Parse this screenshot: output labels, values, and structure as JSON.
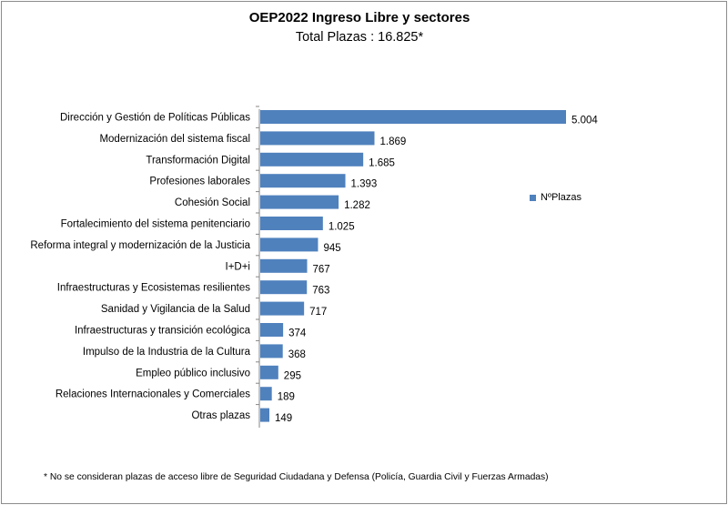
{
  "chart_data": {
    "type": "bar",
    "orientation": "horizontal",
    "title": "OEP2022 Ingreso Libre y sectores",
    "subtitle": "Total Plazas : 16.825*",
    "categories": [
      "Dirección y Gestión de Políticas Públicas",
      "Modernización del sistema fiscal",
      "Transformación Digital",
      "Profesiones laborales",
      "Cohesión Social",
      "Fortalecimiento del sistema penitenciario",
      "Reforma integral y modernización de la Justicia",
      "I+D+i",
      "Infraestructuras y Ecosistemas resilientes",
      "Sanidad y Vigilancia de la Salud",
      "Infraestructuras y transición ecológica",
      "Impulso de la Industria de la Cultura",
      "Empleo público inclusivo",
      "Relaciones Internacionales y Comerciales",
      "Otras plazas"
    ],
    "series": [
      {
        "name": "NºPlazas",
        "values": [
          5004,
          1869,
          1685,
          1393,
          1282,
          1025,
          945,
          767,
          763,
          717,
          374,
          368,
          295,
          189,
          149
        ],
        "value_labels": [
          "5.004",
          "1.869",
          "1.685",
          "1.393",
          "1.282",
          "1.025",
          "945",
          "767",
          "763",
          "717",
          "374",
          "368",
          "295",
          "189",
          "149"
        ]
      }
    ],
    "bar_color": "#4f81bd",
    "legend_position": "right",
    "grid": false,
    "xlim": [
      0,
      5004
    ]
  },
  "footnote": "* No se consideran plazas de acceso libre de Seguridad Ciudadana y Defensa (Policía, Guardia Civil y Fuerzas Armadas)"
}
